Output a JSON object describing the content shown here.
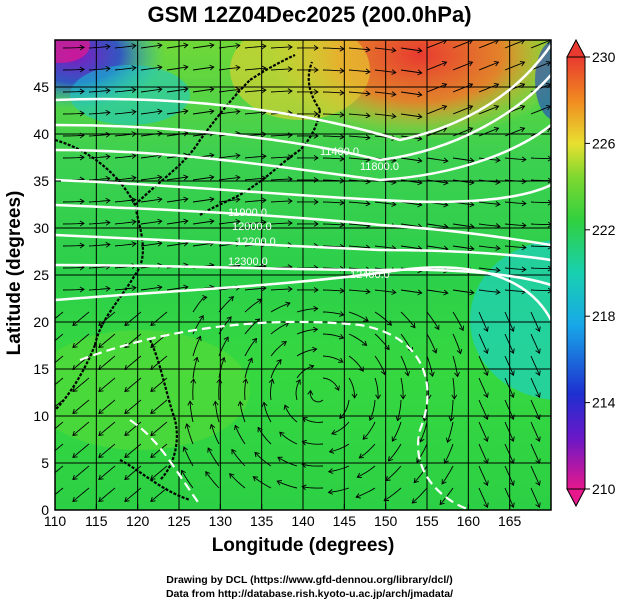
{
  "title": "GSM 12Z04Dec2025 (200.0hPa)",
  "xlabel": "Longitude (degrees)",
  "ylabel": "Latitude  (degrees)",
  "credits": [
    "Drawing by DCL (https://www.gfd-dennou.org/library/dcl/)",
    "Data from http://database.rish.kyoto-u.ac.jp/arch/jmadata/"
  ],
  "x_ticks": [
    "110",
    "115",
    "120",
    "125",
    "130",
    "135",
    "140",
    "145",
    "150",
    "155",
    "160",
    "165"
  ],
  "y_ticks": [
    "0",
    "5",
    "10",
    "15",
    "20",
    "25",
    "30",
    "35",
    "40",
    "45"
  ],
  "colorbar_ticks": [
    "210",
    "214",
    "218",
    "222",
    "226",
    "230"
  ],
  "contour_labels": [
    "11400.0",
    "11800.0",
    "11900.0",
    "12000.0",
    "12200.0",
    "12300.0",
    "12400.0"
  ],
  "colors": {
    "magenta": "#e6188c",
    "blue": "#1e2fd0",
    "cyan": "#18c8d8",
    "green": "#30d040",
    "yellow": "#e8e030",
    "orange": "#f08a20",
    "red": "#e83a30"
  },
  "chart_data": {
    "type": "heatmap",
    "description": "Temperature (K) shading with wind streamlines and geopotential height contours",
    "xlim": [
      110,
      170
    ],
    "ylim": [
      0,
      50
    ],
    "colorbar_range": [
      210,
      230
    ]
  }
}
